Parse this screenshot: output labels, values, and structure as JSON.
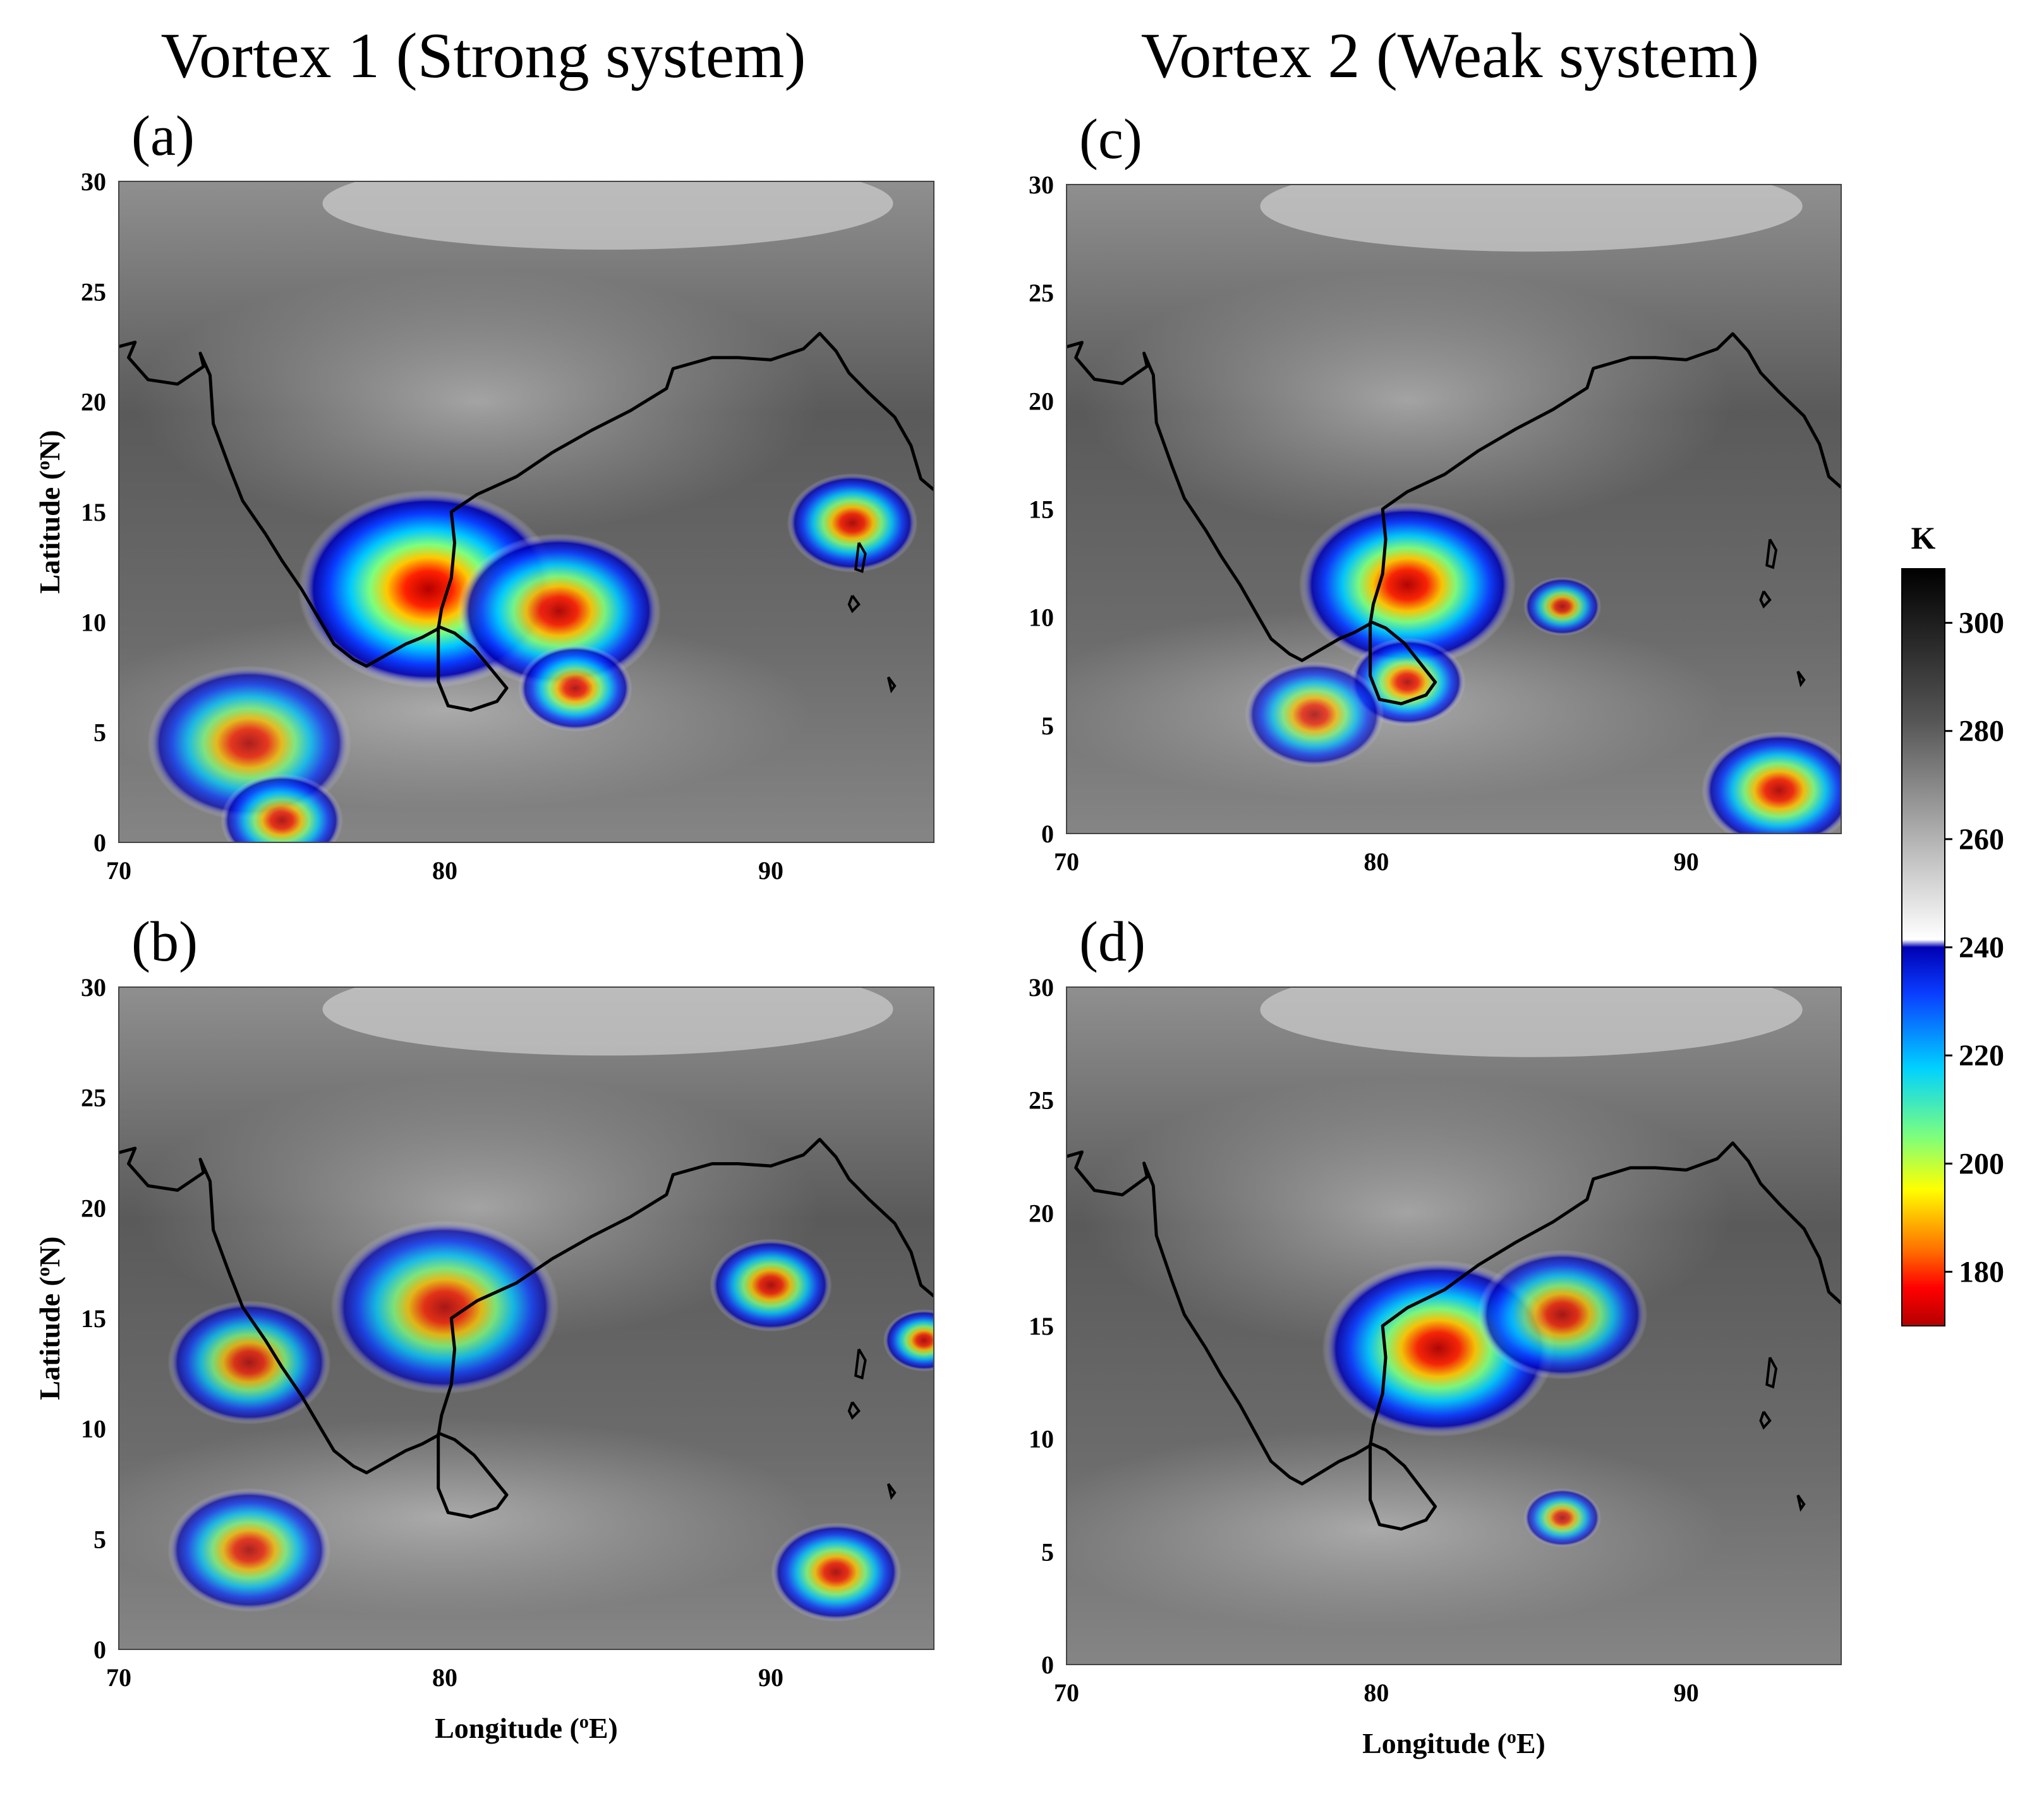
{
  "titles": {
    "left": "Vortex 1 (Strong system)",
    "right": "Vortex 2 (Weak system)"
  },
  "axis": {
    "xlabel": "Longitude (",
    "xlabel_sup": "o",
    "xlabel_end": "E)",
    "ylabel": "Latitude  (",
    "ylabel_sup": "o",
    "ylabel_end": "N)",
    "lon_range": [
      70,
      95
    ],
    "lat_range": [
      0,
      30
    ],
    "xticks": [
      "70",
      "80",
      "90"
    ],
    "yticks": [
      "0",
      "5",
      "10",
      "15",
      "20",
      "25",
      "30"
    ]
  },
  "panels": [
    {
      "id": "a",
      "label": "(a)"
    },
    {
      "id": "b",
      "label": "(b)"
    },
    {
      "id": "c",
      "label": "(c)"
    },
    {
      "id": "d",
      "label": "(d)"
    }
  ],
  "colorbar": {
    "unit": "K",
    "ticks": [
      "300",
      "280",
      "260",
      "240",
      "220",
      "200",
      "180"
    ],
    "range": [
      170,
      310
    ],
    "colors": {
      "hot": "#000000",
      "mid": "#ffffff",
      "cold_blue": "#0000b4",
      "cyan": "#00c8ff",
      "yellow": "#ffff00",
      "red": "#c80000"
    }
  },
  "cloud_systems": {
    "a": [
      {
        "lon": 79.5,
        "lat": 11.5,
        "intensity": 1.0,
        "size": 3.2
      },
      {
        "lon": 83.5,
        "lat": 10.5,
        "intensity": 0.8,
        "size": 2.5
      },
      {
        "lon": 92.5,
        "lat": 14.5,
        "intensity": 0.7,
        "size": 1.6
      },
      {
        "lon": 74,
        "lat": 4.5,
        "intensity": 0.5,
        "size": 2.5
      },
      {
        "lon": 75,
        "lat": 1,
        "intensity": 0.55,
        "size": 1.5
      },
      {
        "lon": 84,
        "lat": 7,
        "intensity": 0.6,
        "size": 1.4
      }
    ],
    "b": [
      {
        "lon": 80,
        "lat": 15.5,
        "intensity": 0.55,
        "size": 2.8
      },
      {
        "lon": 74,
        "lat": 13,
        "intensity": 0.45,
        "size": 2.0
      },
      {
        "lon": 90,
        "lat": 16.5,
        "intensity": 0.6,
        "size": 1.5
      },
      {
        "lon": 92,
        "lat": 3.5,
        "intensity": 0.6,
        "size": 1.6
      },
      {
        "lon": 74,
        "lat": 4.5,
        "intensity": 0.45,
        "size": 2.0
      },
      {
        "lon": 94.7,
        "lat": 14,
        "intensity": 0.6,
        "size": 1.0
      }
    ],
    "c": [
      {
        "lon": 81,
        "lat": 11.5,
        "intensity": 0.9,
        "size": 2.8
      },
      {
        "lon": 81,
        "lat": 7,
        "intensity": 0.6,
        "size": 1.5
      },
      {
        "lon": 93,
        "lat": 2,
        "intensity": 0.7,
        "size": 2.0
      },
      {
        "lon": 86,
        "lat": 10.5,
        "intensity": 0.45,
        "size": 1.0
      },
      {
        "lon": 78,
        "lat": 5.5,
        "intensity": 0.4,
        "size": 1.8
      }
    ],
    "d": [
      {
        "lon": 82,
        "lat": 14,
        "intensity": 0.85,
        "size": 3.0
      },
      {
        "lon": 86,
        "lat": 15.5,
        "intensity": 0.5,
        "size": 2.2
      },
      {
        "lon": 86,
        "lat": 6.5,
        "intensity": 0.35,
        "size": 1.0
      }
    ]
  }
}
